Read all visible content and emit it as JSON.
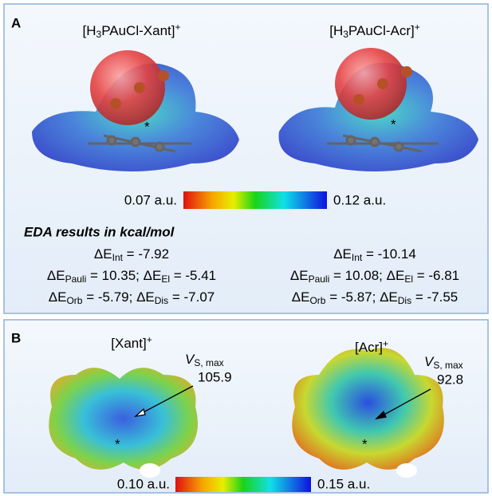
{
  "panel_a": {
    "label": "A",
    "molecules": [
      {
        "name": [
          {
            "text": "[H"
          },
          {
            "sub": "3"
          },
          {
            "text": "PAuCl-Xant]"
          },
          {
            "sup": "+"
          }
        ],
        "marker": "*"
      },
      {
        "name": [
          {
            "text": "[H"
          },
          {
            "sub": "3"
          },
          {
            "text": "PAuCl-Acr]"
          },
          {
            "sup": "+"
          }
        ],
        "marker": "*"
      }
    ],
    "scale_min": "0.07 a.u.",
    "scale_max": "0.12 a.u.",
    "eda": {
      "title": "EDA results in kcal/mol",
      "symbol": "ΔE",
      "equals": " = ",
      "separator": "; ",
      "columns": [
        [
          [
            {
              "sub": "Int",
              "value": -7.92
            }
          ],
          [
            {
              "sub": "Pauli",
              "value": 10.35
            },
            {
              "sub": "El",
              "value": -5.41
            }
          ],
          [
            {
              "sub": "Orb",
              "value": -5.79
            },
            {
              "sub": "Dis",
              "value": -7.07
            }
          ]
        ],
        [
          [
            {
              "sub": "Int",
              "value": -10.14
            }
          ],
          [
            {
              "sub": "Pauli",
              "value": 10.08
            },
            {
              "sub": "El",
              "value": -6.81
            }
          ],
          [
            {
              "sub": "Orb",
              "value": -5.87
            },
            {
              "sub": "Dis",
              "value": -7.55
            }
          ]
        ]
      ]
    }
  },
  "panel_b": {
    "label": "B",
    "molecules": [
      {
        "name": [
          {
            "text": "[Xant]"
          },
          {
            "sup": "+"
          }
        ],
        "vs_symbol": "V",
        "vs_sub": "S, max",
        "vs_value": 105.9,
        "marker": "*"
      },
      {
        "name": [
          {
            "text": "[Acr]"
          },
          {
            "sup": "+"
          }
        ],
        "vs_symbol": "V",
        "vs_sub": "S, max",
        "vs_value": 92.8,
        "marker": "*"
      }
    ],
    "scale_min": "0.10 a.u.",
    "scale_max": "0.15 a.u."
  }
}
